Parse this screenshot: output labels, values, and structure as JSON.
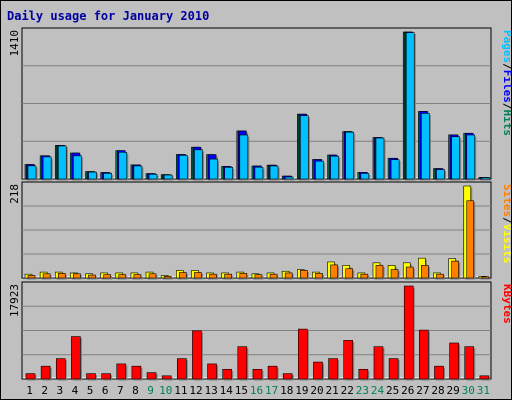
{
  "title": "Daily usage for January 2010",
  "colors": {
    "background": "#c0c0c0",
    "title": "#0000a0",
    "hits": "#00805c",
    "files": "#0000ff",
    "pages": "#00c0ff",
    "visits": "#ffff00",
    "sites": "#ff8000",
    "kbytes": "#ff0000",
    "weekend_day": "#00805c",
    "weekday": "#000000"
  },
  "chart_data": [
    {
      "type": "bar",
      "panel": "hits_files_pages",
      "max_label": "1410",
      "ylim": [
        0,
        1410
      ],
      "legend": [
        {
          "name": "Pages",
          "color": "#00c0ff"
        },
        {
          "name": "Files",
          "color": "#0000ff"
        },
        {
          "name": "Hits",
          "color": "#00805c"
        }
      ],
      "legend_separator": "/",
      "categories": [
        "1",
        "2",
        "3",
        "4",
        "5",
        "6",
        "7",
        "8",
        "9",
        "10",
        "11",
        "12",
        "13",
        "14",
        "15",
        "16",
        "17",
        "18",
        "19",
        "20",
        "21",
        "22",
        "23",
        "24",
        "25",
        "26",
        "27",
        "28",
        "29",
        "30",
        "31"
      ],
      "series": [
        {
          "name": "Hits",
          "values": [
            139,
            223,
            322,
            249,
            71,
            62,
            272,
            136,
            52,
            42,
            235,
            305,
            234,
            121,
            461,
            125,
            133,
            28,
            622,
            187,
            230,
            455,
            64,
            398,
            199,
            1410,
            648,
            100,
            423,
            439,
            16
          ]
        },
        {
          "name": "Files",
          "values": [
            139,
            223,
            322,
            249,
            71,
            62,
            272,
            136,
            52,
            42,
            235,
            305,
            234,
            121,
            461,
            125,
            133,
            28,
            622,
            187,
            230,
            455,
            64,
            398,
            199,
            1410,
            648,
            100,
            423,
            439,
            16
          ]
        },
        {
          "name": "Pages",
          "values": [
            126,
            212,
            317,
            222,
            66,
            54,
            256,
            125,
            45,
            38,
            227,
            280,
            191,
            112,
            422,
            113,
            125,
            19,
            607,
            171,
            219,
            449,
            53,
            393,
            185,
            1404,
            629,
            90,
            405,
            422,
            14
          ]
        }
      ]
    },
    {
      "type": "bar",
      "panel": "visits_sites",
      "max_label": "218",
      "ylim": [
        0,
        218
      ],
      "legend": [
        {
          "name": "Sites",
          "color": "#ff8000"
        },
        {
          "name": "Visits",
          "color": "#ffff00"
        }
      ],
      "legend_separator": "/",
      "categories": [
        "1",
        "2",
        "3",
        "4",
        "5",
        "6",
        "7",
        "8",
        "9",
        "10",
        "11",
        "12",
        "13",
        "14",
        "15",
        "16",
        "17",
        "18",
        "19",
        "20",
        "21",
        "22",
        "23",
        "24",
        "25",
        "26",
        "27",
        "28",
        "29",
        "30",
        "31"
      ],
      "series": [
        {
          "name": "Visits",
          "values": [
            9,
            14,
            14,
            12,
            10,
            12,
            12,
            12,
            14,
            6,
            18,
            18,
            12,
            12,
            14,
            10,
            12,
            16,
            20,
            14,
            38,
            30,
            12,
            36,
            30,
            36,
            47,
            12,
            46,
            218,
            4
          ]
        },
        {
          "name": "Sites",
          "values": [
            6,
            10,
            11,
            10,
            7,
            8,
            8,
            8,
            10,
            4,
            13,
            13,
            9,
            9,
            11,
            8,
            9,
            12,
            18,
            11,
            31,
            22,
            9,
            30,
            20,
            26,
            30,
            9,
            40,
            183,
            3
          ]
        }
      ]
    },
    {
      "type": "bar",
      "panel": "kbytes",
      "max_label": "17923",
      "ylim": [
        0,
        17923
      ],
      "legend": [
        {
          "name": "KBytes",
          "color": "#ff0000"
        }
      ],
      "categories": [
        "1",
        "2",
        "3",
        "4",
        "5",
        "6",
        "7",
        "8",
        "9",
        "10",
        "11",
        "12",
        "13",
        "14",
        "15",
        "16",
        "17",
        "18",
        "19",
        "20",
        "21",
        "22",
        "23",
        "24",
        "25",
        "26",
        "27",
        "28",
        "29",
        "30",
        "31"
      ],
      "series": [
        {
          "name": "KBytes",
          "values": [
            1035,
            2471,
            3934,
            8178,
            1035,
            1035,
            2905,
            2471,
            1234,
            617,
            3934,
            9283,
            2905,
            1871,
            6229,
            1871,
            2471,
            1035,
            9617,
            3268,
            3934,
            7446,
            1871,
            6229,
            3934,
            17923,
            9424,
            2471,
            6940,
            6229,
            617
          ]
        }
      ]
    }
  ],
  "weekend_days": [
    "9",
    "10",
    "16",
    "17",
    "23",
    "24",
    "30",
    "31"
  ]
}
